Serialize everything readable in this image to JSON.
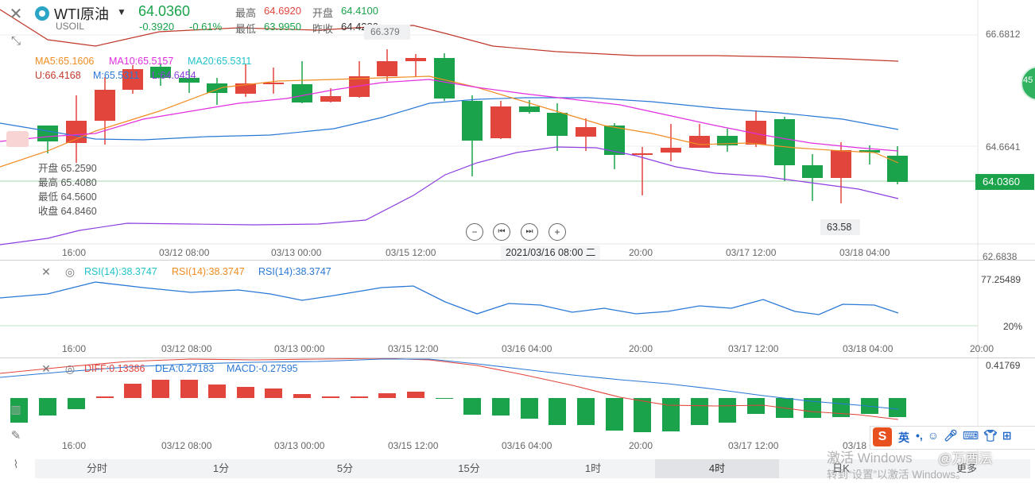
{
  "header": {
    "symbol": "WTI原油",
    "code": "USOIL",
    "last": "64.0360",
    "change": "-0.3920",
    "change_pct": "-0.61%",
    "high_label": "最高",
    "high": "64.6920",
    "open_label": "开盘",
    "open": "64.4100",
    "low_label": "最低",
    "low": "63.9950",
    "prev_label": "昨收",
    "prev_close": "64.4280"
  },
  "indicators": {
    "ma5": "MA5:65.1606",
    "ma10": "MA10:65.5157",
    "ma20": "MA20:65.5311",
    "u": "U:66.4168",
    "m": "M:65.5311",
    "l": "L:64.6454"
  },
  "crosshair": {
    "open": "开盘 65.2590",
    "high": "最高 65.4080",
    "low": "最低 64.5600",
    "close": "收盘 64.8460"
  },
  "main_axis": {
    "top": "66.6812",
    "mid": "64.6641",
    "bottom": "62.6838",
    "current": "64.0360",
    "max_marker": "66.379",
    "min_marker": "63.58"
  },
  "main_time_labels": [
    "16:00",
    "03/12 08:00",
    "03/13 00:00",
    "03/15 12:00",
    "2021/03/16 08:00 二",
    "20:00",
    "03/17 12:00",
    "03/18 04:00"
  ],
  "rsi": {
    "label1": "RSI(14):38.3747",
    "label2": "RSI(14):38.3747",
    "label3": "RSI(14):38.3747",
    "axis_top": "77.25489",
    "axis_bottom": "20%"
  },
  "macd": {
    "diff": "DIFF:0.13386",
    "dea": "DEA:0.27183",
    "macd": "MACD:-0.27595",
    "axis_top": "0.41769"
  },
  "sub_time_labels": [
    "16:00",
    "03/12 08:00",
    "03/13 00:00",
    "03/15 12:00",
    "03/16 04:00",
    "20:00",
    "03/17 12:00",
    "03/18 04:00",
    "20:00"
  ],
  "tabs": [
    "分时",
    "1分",
    "5分",
    "15分",
    "1时",
    "4时",
    "日K",
    "更多"
  ],
  "active_tab": "4时",
  "side_badge": "45",
  "watermark": {
    "line1": "激活 Windows",
    "line2": "转到“设置”以激活 Windows。",
    "brand": "@万酉沄"
  },
  "ime": {
    "logo": "S",
    "lang": "英"
  },
  "colors": {
    "up": "#e2453c",
    "down": "#1aa34a",
    "ma5": "#f08c22",
    "ma10": "#e02ee0",
    "ma20": "#21c3c9",
    "boll_u": "#c0392b",
    "boll_m": "#2a78d6",
    "boll_l": "#8e3fe0"
  }
}
